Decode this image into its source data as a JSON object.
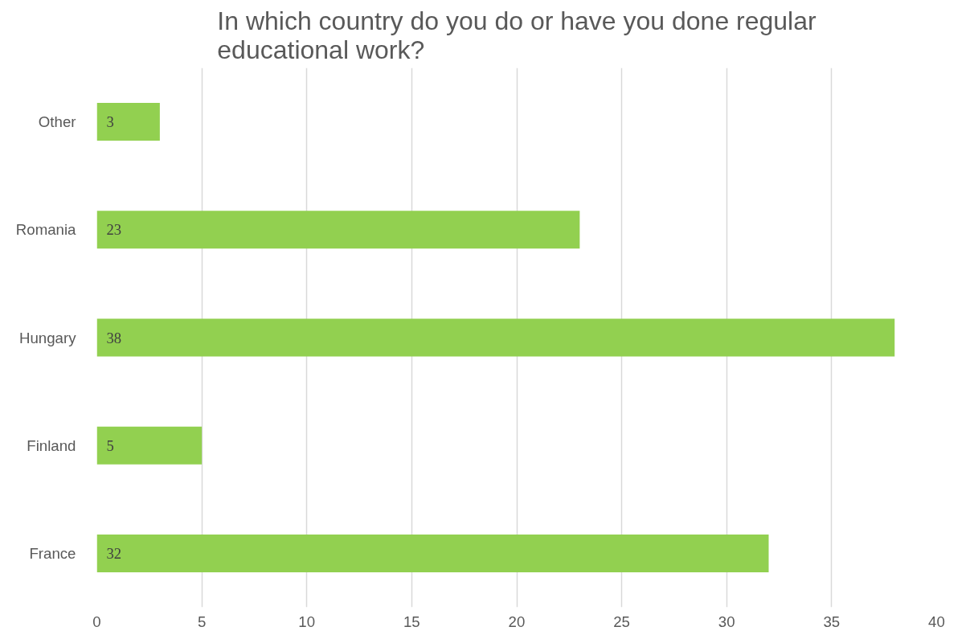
{
  "chart_data": {
    "type": "bar",
    "orientation": "horizontal",
    "title": "In which country do you do or have you done regular educational work?",
    "categories": [
      "Other",
      "Romania",
      "Hungary",
      "Finland",
      "France"
    ],
    "values": [
      3,
      23,
      38,
      5,
      32
    ],
    "color": "#92d050",
    "xlim": [
      0,
      40
    ],
    "xticks": [
      0,
      5,
      10,
      15,
      20,
      25,
      30,
      35,
      40
    ],
    "grid": "x",
    "data_labels": true
  }
}
